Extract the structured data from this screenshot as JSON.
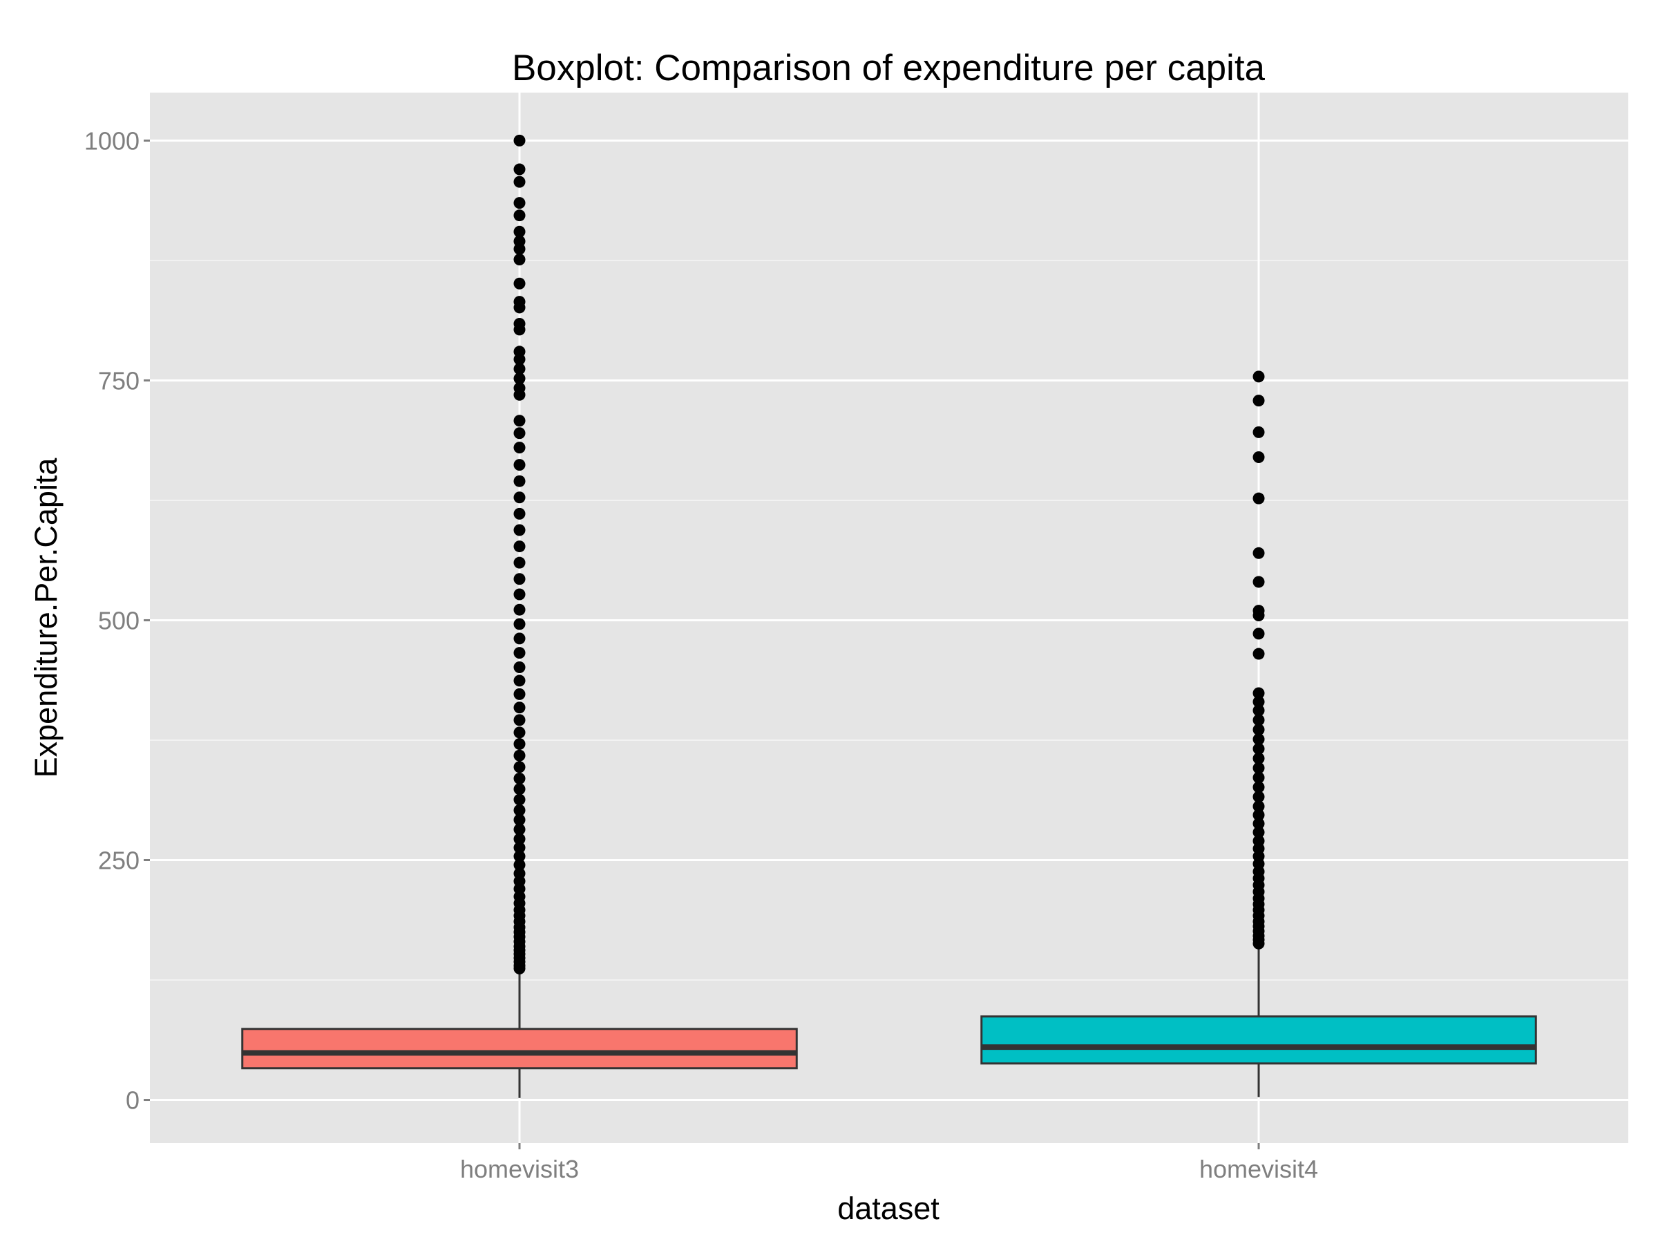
{
  "chart_data": {
    "type": "boxplot",
    "title": "Boxplot: Comparison of expenditure per capita",
    "xlabel": "dataset",
    "ylabel": "Expenditure.Per.Capita",
    "ylim": [
      -45,
      1050
    ],
    "yticks": [
      0,
      250,
      500,
      750,
      1000
    ],
    "ytick_labels": [
      "0",
      "250",
      "500",
      "750",
      "1000"
    ],
    "grid": true,
    "categories": [
      "homevisit3",
      "homevisit4"
    ],
    "series": [
      {
        "category": "homevisit3",
        "color": "#F8766D",
        "whisker_low": 2,
        "q1": 33,
        "median": 49,
        "q3": 74,
        "whisker_high": 135,
        "outliers": [
          137,
          140,
          144,
          148,
          152,
          156,
          160,
          165,
          170,
          175,
          180,
          186,
          192,
          198,
          205,
          212,
          220,
          228,
          236,
          245,
          254,
          263,
          272,
          282,
          292,
          302,
          313,
          324,
          335,
          347,
          359,
          371,
          383,
          396,
          409,
          423,
          437,
          451,
          466,
          481,
          496,
          511,
          527,
          543,
          560,
          577,
          594,
          611,
          628,
          645,
          662,
          680,
          695,
          708,
          735,
          742,
          752,
          762,
          772,
          780,
          803,
          809,
          826,
          832,
          851,
          876,
          887,
          895,
          905,
          922,
          935,
          957,
          970,
          1000
        ]
      },
      {
        "category": "homevisit4",
        "color": "#00BFC4",
        "whisker_low": 3,
        "q1": 38,
        "median": 55,
        "q3": 87,
        "whisker_high": 160,
        "outliers": [
          163,
          167,
          171,
          176,
          181,
          186,
          192,
          198,
          204,
          210,
          217,
          224,
          231,
          238,
          246,
          254,
          262,
          270,
          279,
          288,
          297,
          306,
          316,
          326,
          336,
          346,
          356,
          366,
          376,
          386,
          396,
          406,
          415,
          424,
          465,
          486,
          505,
          510,
          540,
          570,
          627,
          670,
          696,
          729,
          754
        ]
      }
    ]
  }
}
